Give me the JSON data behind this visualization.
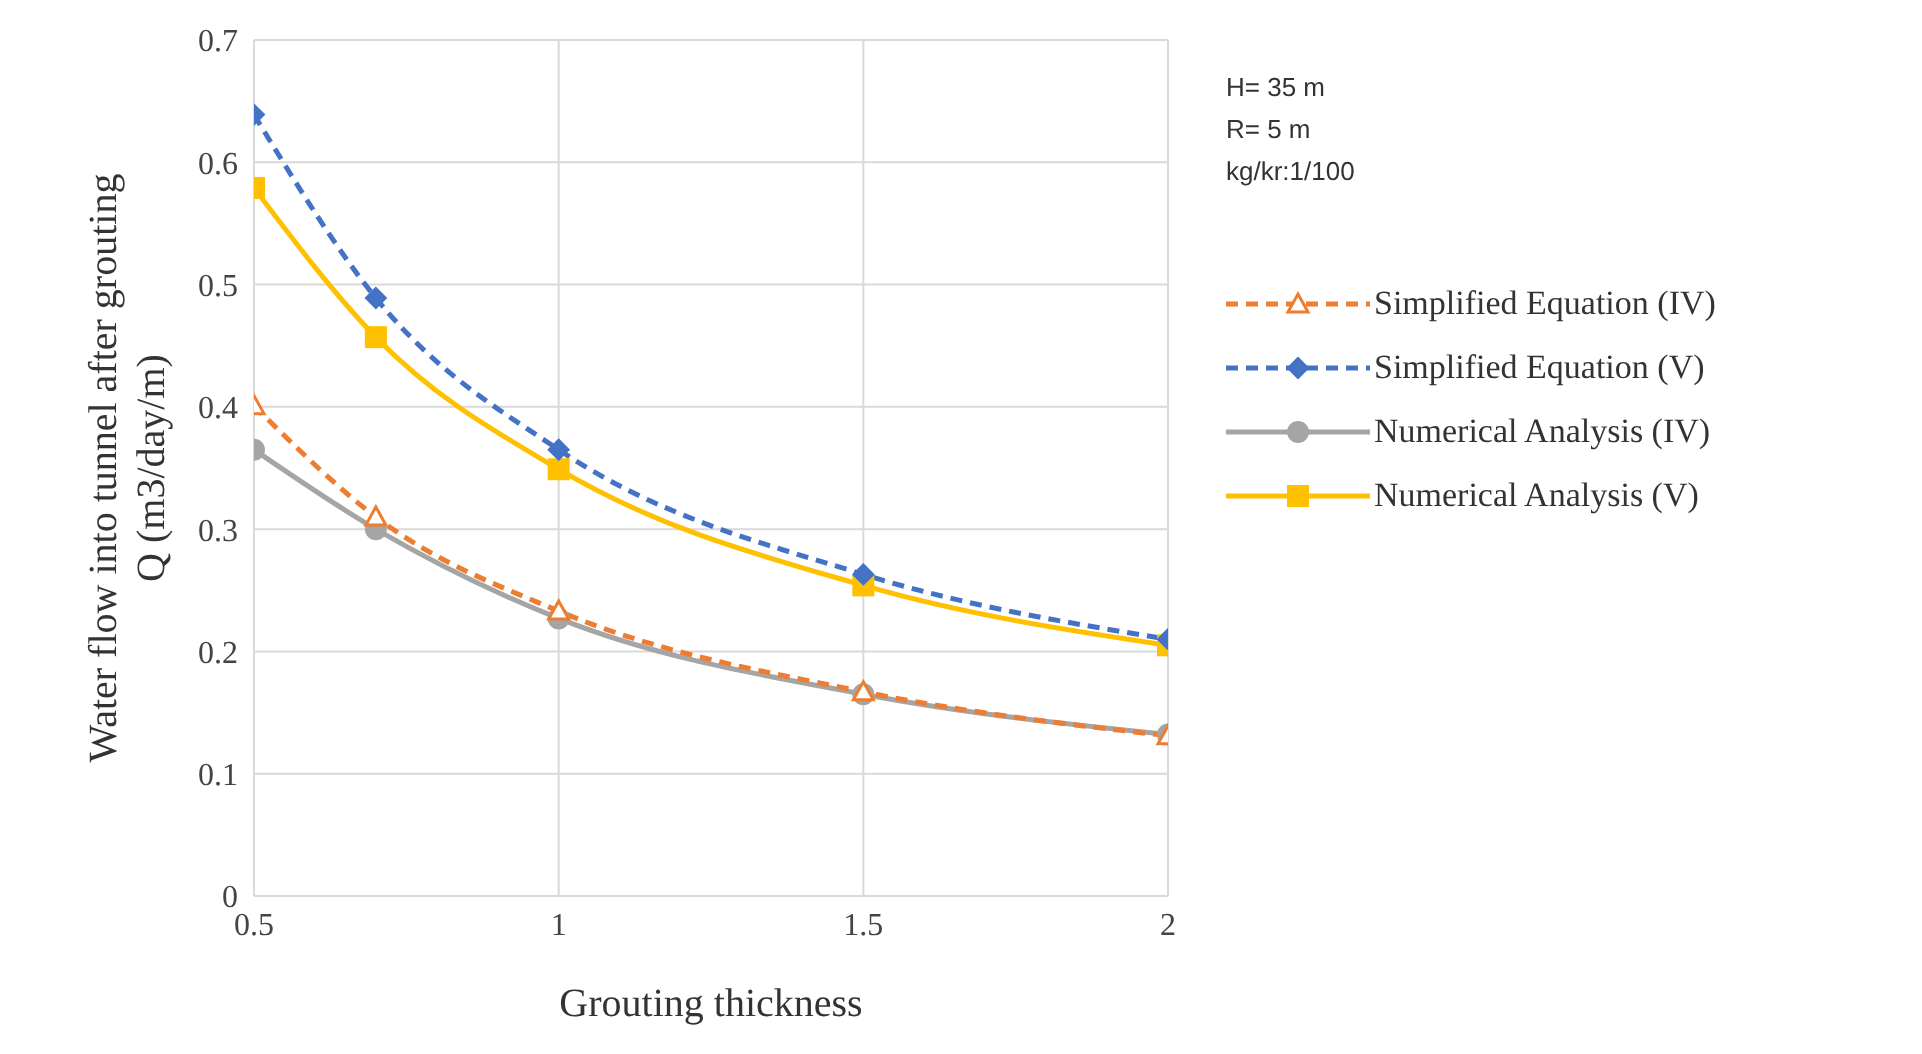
{
  "chart_data": {
    "type": "line",
    "xlabel": "Grouting thickness",
    "ylabel": "Water flow into tunnel after grouting\nQ (m3/day/m)",
    "x": [
      0.5,
      0.7,
      1,
      1.5,
      2
    ],
    "series": [
      {
        "name": "Simplified Equation (IV)",
        "color": "#ed7d31",
        "values": [
          0.401,
          0.31,
          0.233,
          0.167,
          0.131
        ],
        "marker": "triangle",
        "line_style": "dashed"
      },
      {
        "name": "Simplified Equation (V)",
        "color": "#4472c4",
        "values": [
          0.639,
          0.489,
          0.365,
          0.263,
          0.21
        ],
        "marker": "diamond",
        "line_style": "dashed"
      },
      {
        "name": "Numerical Analysis (IV)",
        "color": "#a5a5a5",
        "values": [
          0.365,
          0.3,
          0.227,
          0.165,
          0.132
        ],
        "marker": "circle",
        "line_style": "solid"
      },
      {
        "name": "Numerical Analysis (V)",
        "color": "#ffc000",
        "values": [
          0.579,
          0.457,
          0.349,
          0.254,
          0.205
        ],
        "marker": "square",
        "line_style": "solid"
      }
    ],
    "xlim": [
      0.5,
      2
    ],
    "xticks": [
      0.5,
      1,
      1.5,
      2
    ],
    "ylim": [
      0,
      0.7
    ],
    "yticks": [
      0,
      0.1,
      0.2,
      0.3,
      0.4,
      0.5,
      0.6,
      0.7
    ],
    "grid": true,
    "legend": "right",
    "annotations": [
      "H= 35 m",
      "R= 5 m",
      "kg/kr:1/100"
    ]
  }
}
